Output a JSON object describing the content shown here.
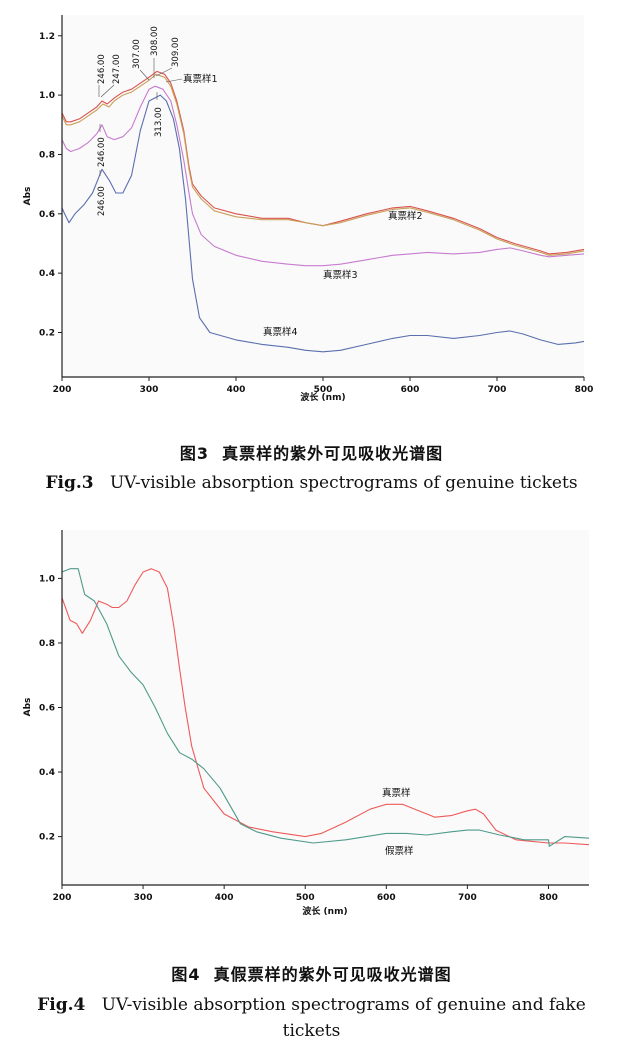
{
  "chart_data": [
    {
      "type": "line",
      "xlabel": "波长 (nm)",
      "ylabel": "Abs",
      "xlim": [
        200,
        800
      ],
      "ylim": [
        0.05,
        1.27
      ],
      "xticks": [
        200,
        300,
        400,
        500,
        600,
        700,
        800
      ],
      "yticks": [
        0.2,
        0.4,
        0.6,
        0.8,
        1.0,
        1.2
      ],
      "ytick_labels": [
        "0.2",
        "0.4",
        "0.6",
        "0.8",
        "1.0",
        "1.2"
      ],
      "series": [
        {
          "name": "真票样1",
          "color": "#d9534f",
          "x": [
            200,
            205,
            210,
            220,
            230,
            240,
            246,
            252,
            260,
            270,
            280,
            290,
            300,
            309,
            318,
            325,
            332,
            340,
            346,
            350,
            360,
            375,
            400,
            430,
            460,
            480,
            500,
            520,
            550,
            580,
            600,
            620,
            650,
            680,
            700,
            720,
            750,
            760,
            780,
            800
          ],
          "y": [
            0.94,
            0.91,
            0.91,
            0.92,
            0.94,
            0.96,
            0.98,
            0.97,
            0.99,
            1.01,
            1.02,
            1.04,
            1.06,
            1.08,
            1.07,
            1.04,
            0.98,
            0.88,
            0.76,
            0.7,
            0.66,
            0.62,
            0.6,
            0.585,
            0.585,
            0.57,
            0.56,
            0.575,
            0.6,
            0.62,
            0.625,
            0.61,
            0.585,
            0.55,
            0.52,
            0.5,
            0.475,
            0.465,
            0.47,
            0.48
          ]
        },
        {
          "name": "真票样2",
          "color": "#c9a05a",
          "x": [
            200,
            205,
            210,
            220,
            230,
            240,
            247,
            254,
            260,
            270,
            280,
            290,
            300,
            308,
            318,
            325,
            332,
            340,
            346,
            350,
            360,
            375,
            400,
            430,
            460,
            480,
            500,
            520,
            550,
            580,
            600,
            620,
            650,
            680,
            700,
            720,
            750,
            760,
            780,
            800
          ],
          "y": [
            0.93,
            0.9,
            0.9,
            0.91,
            0.93,
            0.95,
            0.97,
            0.96,
            0.98,
            1.0,
            1.01,
            1.03,
            1.05,
            1.07,
            1.06,
            1.03,
            0.97,
            0.87,
            0.75,
            0.69,
            0.65,
            0.61,
            0.59,
            0.58,
            0.58,
            0.57,
            0.56,
            0.57,
            0.595,
            0.615,
            0.62,
            0.605,
            0.58,
            0.545,
            0.515,
            0.495,
            0.47,
            0.46,
            0.465,
            0.475
          ]
        },
        {
          "name": "真票样3",
          "color": "#c77bcf",
          "x": [
            200,
            205,
            210,
            220,
            230,
            240,
            246,
            252,
            260,
            270,
            280,
            290,
            300,
            307,
            316,
            325,
            332,
            340,
            346,
            350,
            360,
            375,
            400,
            430,
            460,
            480,
            500,
            520,
            550,
            580,
            600,
            620,
            650,
            680,
            700,
            715,
            730,
            750,
            760,
            780,
            800
          ],
          "y": [
            0.85,
            0.82,
            0.81,
            0.82,
            0.84,
            0.87,
            0.9,
            0.86,
            0.85,
            0.86,
            0.89,
            0.96,
            1.02,
            1.03,
            1.02,
            0.98,
            0.9,
            0.78,
            0.67,
            0.6,
            0.53,
            0.49,
            0.46,
            0.44,
            0.43,
            0.425,
            0.425,
            0.43,
            0.445,
            0.46,
            0.465,
            0.47,
            0.465,
            0.47,
            0.48,
            0.485,
            0.475,
            0.46,
            0.455,
            0.46,
            0.465
          ]
        },
        {
          "name": "真票样4",
          "color": "#5a6fae",
          "x": [
            200,
            203,
            208,
            215,
            225,
            235,
            246,
            255,
            262,
            270,
            280,
            290,
            300,
            313,
            320,
            328,
            335,
            342,
            350,
            358,
            370,
            400,
            430,
            460,
            480,
            500,
            520,
            550,
            580,
            600,
            620,
            650,
            680,
            700,
            715,
            730,
            750,
            770,
            790,
            800
          ],
          "y": [
            0.62,
            0.6,
            0.57,
            0.6,
            0.63,
            0.67,
            0.75,
            0.71,
            0.67,
            0.67,
            0.73,
            0.88,
            0.98,
            1.0,
            0.98,
            0.92,
            0.82,
            0.65,
            0.38,
            0.25,
            0.2,
            0.175,
            0.16,
            0.15,
            0.14,
            0.135,
            0.14,
            0.16,
            0.18,
            0.19,
            0.19,
            0.18,
            0.19,
            0.2,
            0.205,
            0.195,
            0.175,
            0.16,
            0.165,
            0.17
          ]
        }
      ],
      "series_labels": [
        "真票样1",
        "真票样2",
        "真票样3",
        "真票样4"
      ],
      "peak_labels": [
        "246.00",
        "247.00",
        "307.00",
        "308.00",
        "309.00",
        "246.00",
        "313.00",
        "246.00"
      ],
      "caption_zh_num": "图3",
      "caption_zh": "真票样的紫外可见吸收光谱图",
      "caption_en_num": "Fig.3",
      "caption_en": "UV-visible absorption spectrograms of genuine tickets"
    },
    {
      "type": "line",
      "xlabel": "波长 (nm)",
      "ylabel": "Abs",
      "xlim": [
        200,
        850
      ],
      "ylim": [
        0.05,
        1.15
      ],
      "xticks": [
        200,
        300,
        400,
        500,
        600,
        700,
        800
      ],
      "yticks": [
        0.2,
        0.4,
        0.6,
        0.8,
        1.0
      ],
      "ytick_labels": [
        "0.2",
        "0.4",
        "0.6",
        "0.8",
        "1.0"
      ],
      "series": [
        {
          "name": "真票样",
          "color": "#ee5a5a",
          "x": [
            200,
            210,
            218,
            225,
            235,
            245,
            255,
            262,
            270,
            280,
            290,
            300,
            310,
            320,
            330,
            338,
            345,
            352,
            360,
            375,
            400,
            430,
            460,
            500,
            520,
            550,
            580,
            600,
            620,
            640,
            660,
            680,
            700,
            710,
            720,
            735,
            760,
            780,
            800,
            820,
            850
          ],
          "y": [
            0.94,
            0.87,
            0.86,
            0.83,
            0.87,
            0.93,
            0.92,
            0.91,
            0.91,
            0.93,
            0.98,
            1.02,
            1.03,
            1.02,
            0.97,
            0.85,
            0.72,
            0.6,
            0.48,
            0.35,
            0.27,
            0.23,
            0.215,
            0.2,
            0.21,
            0.245,
            0.285,
            0.3,
            0.3,
            0.28,
            0.26,
            0.265,
            0.28,
            0.285,
            0.27,
            0.22,
            0.19,
            0.185,
            0.18,
            0.18,
            0.175
          ]
        },
        {
          "name": "假票样",
          "color": "#4f9a8a",
          "x": [
            200,
            210,
            220,
            228,
            240,
            255,
            270,
            285,
            300,
            315,
            330,
            345,
            360,
            375,
            395,
            420,
            440,
            470,
            510,
            550,
            600,
            625,
            650,
            680,
            700,
            715,
            740,
            770,
            800,
            801,
            820,
            850
          ],
          "y": [
            1.02,
            1.03,
            1.03,
            0.95,
            0.93,
            0.86,
            0.76,
            0.71,
            0.67,
            0.6,
            0.52,
            0.46,
            0.44,
            0.41,
            0.35,
            0.24,
            0.215,
            0.195,
            0.18,
            0.19,
            0.21,
            0.21,
            0.205,
            0.215,
            0.22,
            0.22,
            0.205,
            0.19,
            0.19,
            0.17,
            0.2,
            0.195
          ]
        }
      ],
      "series_labels": [
        "真票样",
        "假票样"
      ],
      "caption_zh_num": "图4",
      "caption_zh": "真假票样的紫外可见吸收光谱图",
      "caption_en_num": "Fig.4",
      "caption_en": "UV-visible absorption spectrograms of genuine and fake tickets"
    }
  ]
}
